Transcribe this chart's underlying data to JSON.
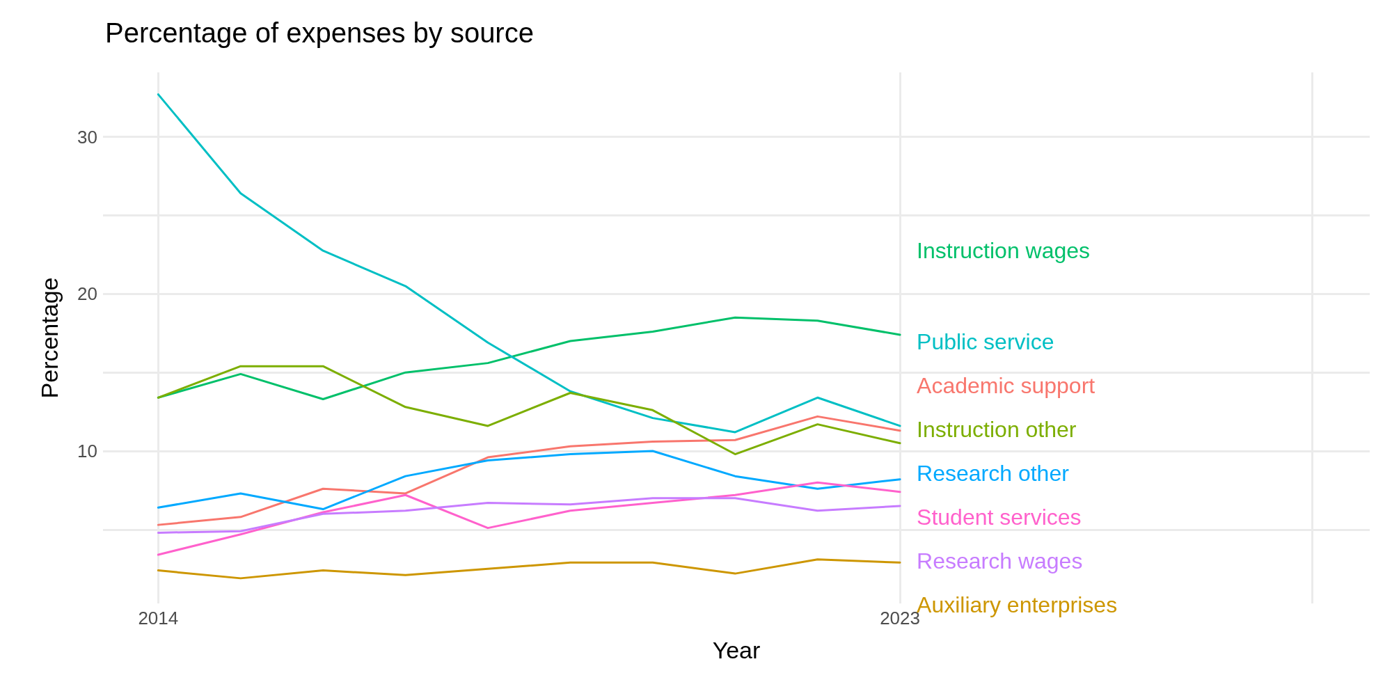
{
  "chart_data": {
    "type": "line",
    "title": "Percentage of expenses by source",
    "xlabel": "Year",
    "ylabel": "Percentage",
    "x": [
      2014,
      2015,
      2016,
      2017,
      2018,
      2019,
      2020,
      2021,
      2022,
      2023
    ],
    "xlim": [
      2013.33,
      2028.7
    ],
    "xticks": [
      2014,
      2023,
      {
        "value": 2028,
        "label": null
      }
    ],
    "ylim": [
      0.3,
      34.1
    ],
    "yticks": [
      {
        "value": 5,
        "label": null
      },
      10,
      {
        "value": 15,
        "label": null
      },
      20,
      {
        "value": 25,
        "label": null
      },
      30
    ],
    "grid": true,
    "legend": false,
    "marker": "none",
    "line_style": "solid",
    "series": [
      {
        "name": "Instruction wages",
        "color": "#00c06a",
        "values": [
          13.4,
          14.9,
          13.3,
          15.0,
          15.6,
          17.0,
          17.6,
          18.5,
          18.3,
          17.4
        ]
      },
      {
        "name": "Public service",
        "color": "#00bfc4",
        "values": [
          32.7,
          26.4,
          22.75,
          20.5,
          16.9,
          13.8,
          12.1,
          11.2,
          13.4,
          11.6
        ]
      },
      {
        "name": "Academic support",
        "color": "#f8766d",
        "values": [
          5.3,
          5.8,
          7.6,
          7.3,
          9.6,
          10.3,
          10.6,
          10.7,
          12.2,
          11.3
        ]
      },
      {
        "name": "Instruction other",
        "color": "#7cae00",
        "values": [
          13.4,
          15.4,
          15.4,
          12.8,
          11.6,
          13.7,
          12.6,
          9.8,
          11.7,
          10.5
        ]
      },
      {
        "name": "Research other",
        "color": "#00a9ff",
        "values": [
          6.4,
          7.3,
          6.3,
          8.4,
          9.4,
          9.8,
          10.0,
          8.4,
          7.6,
          8.2
        ]
      },
      {
        "name": "Student services",
        "color": "#ff61cc",
        "values": [
          3.4,
          4.7,
          6.1,
          7.2,
          5.1,
          6.2,
          6.7,
          7.2,
          8.0,
          7.4
        ]
      },
      {
        "name": "Research wages",
        "color": "#c77cff",
        "values": [
          4.8,
          4.9,
          6.0,
          6.2,
          6.7,
          6.6,
          7.0,
          7.0,
          6.2,
          6.5
        ]
      },
      {
        "name": "Auxiliary enterprises",
        "color": "#cd9600",
        "values": [
          2.4,
          1.9,
          2.4,
          2.1,
          2.5,
          2.9,
          2.9,
          2.2,
          3.1,
          2.9
        ]
      }
    ]
  }
}
